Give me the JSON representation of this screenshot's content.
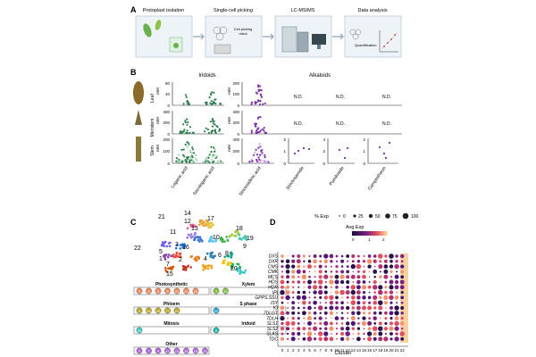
{
  "panels": {
    "a": "A",
    "b": "B",
    "c": "C",
    "d": "D"
  },
  "workflow": {
    "steps": [
      "Protoplast isolation",
      "Single-cell picking",
      "LC-MS/MS",
      "Data analysis"
    ],
    "robot_label": "Cell picking\nrobot",
    "quant_label": "Quantification"
  },
  "panel_b": {
    "iridoids_title": "Iridoids",
    "alkaloids_title": "Alkaloids",
    "rows": [
      "Leaf",
      "Meristem",
      "Stem"
    ],
    "unit": "mM",
    "nd": "N.D.",
    "x_labels": [
      "Loganic acid",
      "Secologanic acid",
      "Strictosidinic acid",
      "Strictosamide",
      "Pumiloside",
      "Camptothecin"
    ],
    "colors": {
      "iridoid": "#2e7d4f",
      "alkaloid": "#7b2fa8",
      "iridoid_light": "#a7d7b4",
      "alkaloid_light": "#d2b0e6"
    },
    "yticks": {
      "Leaf": {
        "iridoid": [
          "0",
          "40",
          "80"
        ],
        "alkaloid": [
          "0",
          "100",
          "200"
        ]
      },
      "Meristem": {
        "iridoid": [
          "0",
          "200",
          "400"
        ],
        "alkaloid": [
          "0",
          "200",
          "400"
        ]
      },
      "Stem": {
        "iridoid": [
          "0",
          "100",
          "200"
        ],
        "alkaloid": [
          "0",
          "200",
          "400"
        ],
        "small_a": [
          "0",
          "1",
          "2"
        ],
        "small_b": [
          "0",
          "2",
          "4"
        ],
        "small_c": [
          "0",
          "1",
          "2"
        ]
      }
    }
  },
  "panel_c": {
    "cluster_numbers": [
      "21",
      "14",
      "17",
      "12",
      "18",
      "19",
      "13",
      "11",
      "10",
      "9",
      "3",
      "16",
      "8",
      "5",
      "1",
      "22",
      "7",
      "6",
      "4",
      "2",
      "15",
      "20"
    ],
    "legend": [
      {
        "title": "Photosynthetic",
        "ids": [
          "0",
          "2",
          "5",
          "6",
          "11",
          "13",
          "16"
        ],
        "color": "#f08a5d"
      },
      {
        "title": "Xylem",
        "ids": [
          "3",
          "10"
        ],
        "color": "#7fbf3f"
      },
      {
        "title": "Phloem",
        "ids": [
          "4",
          "14",
          "15",
          "17",
          "21"
        ],
        "color": "#bfa82e"
      },
      {
        "title": "S phase",
        "ids": [
          "12"
        ],
        "color": "#2ea6d9"
      },
      {
        "title": "Mitosis",
        "ids": [
          "20"
        ],
        "color": "#3cc6c0"
      },
      {
        "title": "Iridoid",
        "ids": [
          "8"
        ],
        "color": "#27b5a8"
      },
      {
        "title": "Other",
        "ids": [
          "1",
          "7",
          "9",
          "11",
          "13",
          "18",
          "19",
          "22"
        ],
        "color": "#b06ad9"
      }
    ]
  },
  "panel_d": {
    "legend_exp_title": "% Exp",
    "exp_ticks": [
      "0",
      "25",
      "50",
      "75",
      "100"
    ],
    "avg_title": "Avg Exp",
    "avg_ticks": [
      "0",
      "1",
      "2"
    ],
    "genes": [
      "DXS",
      "DXR",
      "CMS",
      "CMK",
      "MCS",
      "HDS",
      "HDR",
      "IPI",
      "GPPS.SSU",
      "ISY",
      "IO",
      "7DLGT",
      "7DLH",
      "SLS1",
      "SLS2",
      "SLAS",
      "TDC"
    ],
    "clusters": [
      "0",
      "1",
      "2",
      "3",
      "4",
      "5",
      "6",
      "7",
      "8",
      "9",
      "10",
      "11",
      "12",
      "13",
      "14",
      "15",
      "16",
      "17",
      "18",
      "19",
      "20",
      "21",
      "22"
    ],
    "xlabel": "Cluster",
    "highlight_cluster": "22"
  }
}
